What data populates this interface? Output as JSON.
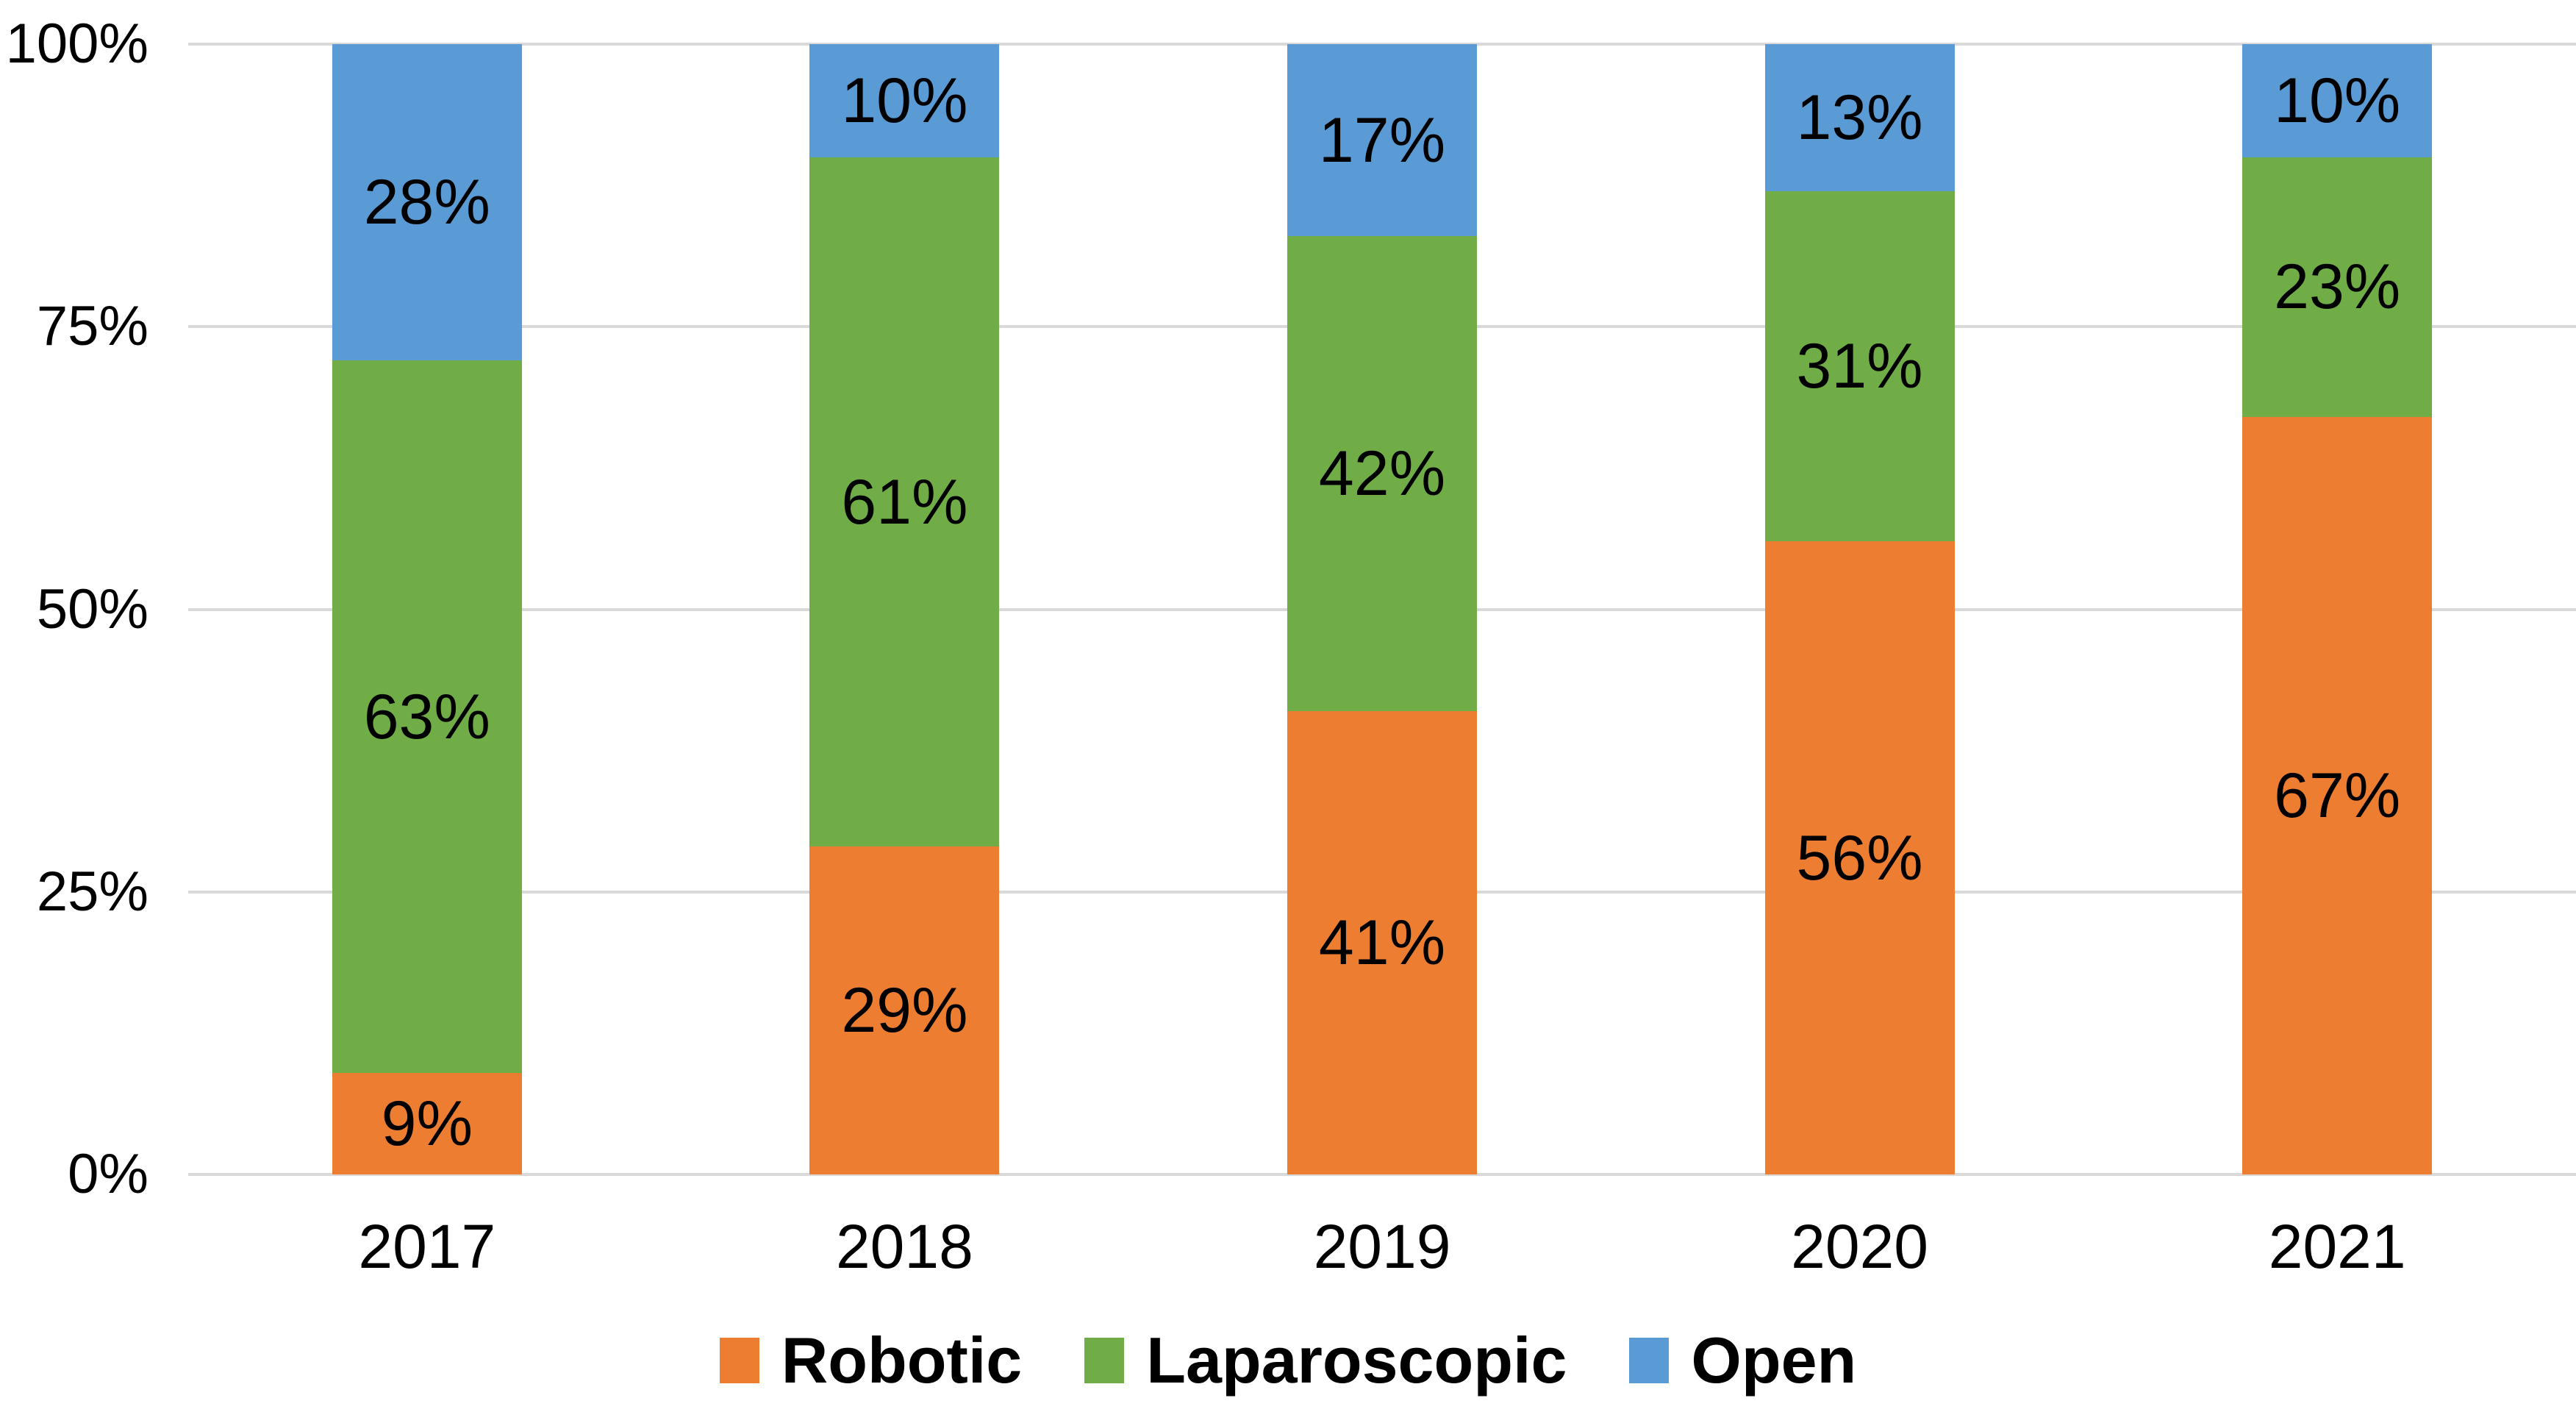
{
  "chart_data": {
    "type": "bar",
    "variant": "stacked-100-percent-column",
    "title": "",
    "categories": [
      "2017",
      "2018",
      "2019",
      "2020",
      "2021"
    ],
    "series": [
      {
        "name": "Robotic",
        "color": "#ED7D31",
        "values": [
          9,
          29,
          41,
          56,
          67
        ],
        "labels": [
          "9%",
          "29%",
          "41%",
          "56%",
          "67%"
        ]
      },
      {
        "name": "Laparoscopic",
        "color": "#70AD47",
        "values": [
          63,
          61,
          42,
          31,
          23
        ],
        "labels": [
          "63%",
          "61%",
          "42%",
          "31%",
          "23%"
        ]
      },
      {
        "name": "Open",
        "color": "#5B9BD5",
        "values": [
          28,
          10,
          17,
          13,
          10
        ],
        "labels": [
          "28%",
          "10%",
          "17%",
          "13%",
          "10%"
        ]
      }
    ],
    "y_axis": {
      "min": 0,
      "max": 100,
      "tick_values": [
        0,
        25,
        50,
        75,
        100
      ],
      "tick_labels": [
        "0%",
        "25%",
        "50%",
        "75%",
        "100%"
      ]
    },
    "xlabel": "",
    "ylabel": "",
    "grid": true,
    "gridline_color": "#D9D9D9",
    "legend_position": "bottom",
    "data_labels_color": "#000000",
    "background_color": "#FFFFFF"
  }
}
